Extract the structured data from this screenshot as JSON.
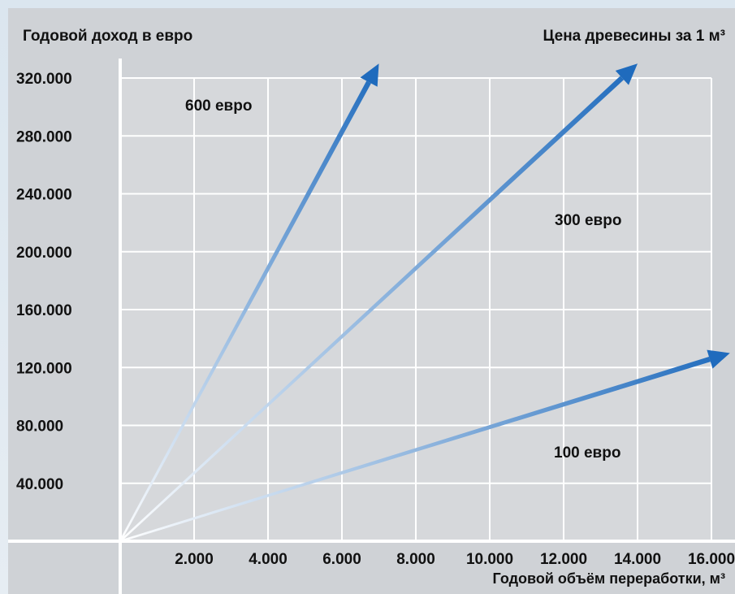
{
  "chart_data": {
    "type": "line",
    "title_left": "Годовой доход в евро",
    "title_right": "Цена древесины за 1 м³",
    "xlabel": "Годовой объём переработки, м³",
    "x_ticks": [
      "2.000",
      "4.000",
      "6.000",
      "8.000",
      "10.000",
      "12.000",
      "14.000",
      "16.000"
    ],
    "y_ticks": [
      "40.000",
      "80.000",
      "120.000",
      "160.000",
      "200.000",
      "240.000",
      "280.000",
      "320.000"
    ],
    "xlim": [
      0,
      16000
    ],
    "ylim": [
      0,
      320000
    ],
    "grid": true,
    "series_color": "#1f6bbd",
    "series": [
      {
        "name": "600 евро",
        "x": [
          0,
          7000
        ],
        "y": [
          0,
          330000
        ]
      },
      {
        "name": "300 евро",
        "x": [
          0,
          14000
        ],
        "y": [
          0,
          330000
        ]
      },
      {
        "name": "100 евро",
        "x": [
          0,
          16500
        ],
        "y": [
          0,
          130000
        ]
      }
    ]
  }
}
